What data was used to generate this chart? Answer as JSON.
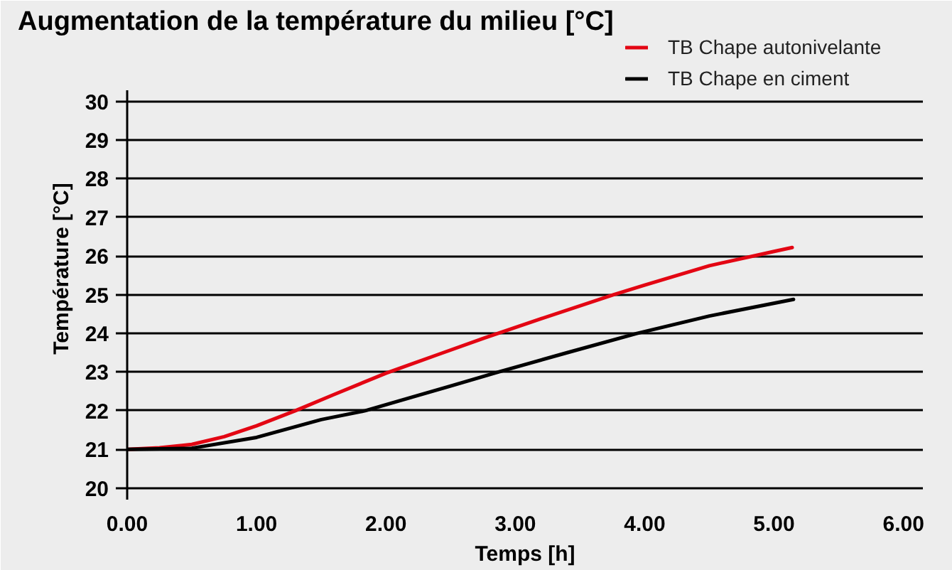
{
  "chart_data": {
    "type": "line",
    "title": "Augmentation de la température du milieu [°C]",
    "xlabel": "Temps [h]",
    "ylabel": "Température [°C]",
    "xlim": [
      0,
      6.15
    ],
    "xticks": [
      {
        "value": 0,
        "label": "0.00"
      },
      {
        "value": 1,
        "label": "1.00"
      },
      {
        "value": 2,
        "label": "2.00"
      },
      {
        "value": 3,
        "label": "3.00"
      },
      {
        "value": 4,
        "label": "4.00"
      },
      {
        "value": 5,
        "label": "5.00"
      },
      {
        "value": 6,
        "label": "6.00"
      }
    ],
    "ylim": [
      19.7,
      30.3
    ],
    "yticks": [
      20,
      21,
      22,
      23,
      24,
      25,
      26,
      27,
      28,
      29,
      30
    ],
    "grid": "y",
    "legend": "top right",
    "line_style": "solid",
    "series": [
      {
        "name": "TB Chape autonivelante",
        "color": "#e30613",
        "x": [
          0,
          0.25,
          0.5,
          0.75,
          1.0,
          1.3,
          1.6,
          2.0,
          2.4,
          2.76,
          3.2,
          3.76,
          4.0,
          4.5,
          5.0,
          5.14
        ],
        "values": [
          21.0,
          21.04,
          21.13,
          21.33,
          21.61,
          22.0,
          22.42,
          22.97,
          23.45,
          23.88,
          24.38,
          25.0,
          25.25,
          25.75,
          26.12,
          26.22
        ]
      },
      {
        "name": "TB Chape en ciment",
        "color": "#000000",
        "x": [
          0,
          0.5,
          1.0,
          1.5,
          1.84,
          2.2,
          2.5,
          2.87,
          3.4,
          3.94,
          4.5,
          5.15
        ],
        "values": [
          21.0,
          21.03,
          21.31,
          21.77,
          22.0,
          22.35,
          22.64,
          23.0,
          23.5,
          24.0,
          24.45,
          24.88
        ]
      }
    ]
  }
}
